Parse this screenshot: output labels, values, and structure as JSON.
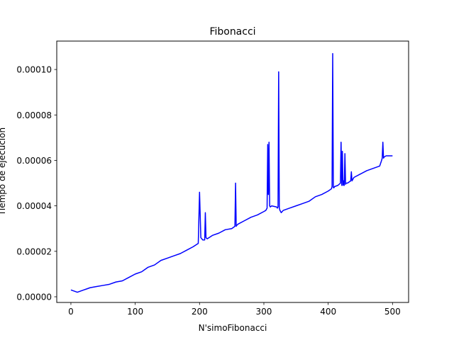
{
  "chart_data": {
    "type": "line",
    "title": "Fibonacci",
    "xlabel": "N'simoFibonacci",
    "ylabel": "Tiempo de ejecución",
    "xlim": [
      -22,
      525
    ],
    "ylim": [
      -2.5e-06,
      0.0001125
    ],
    "x_ticks": [
      0,
      100,
      200,
      300,
      400,
      500
    ],
    "x_tick_labels": [
      "0",
      "100",
      "200",
      "300",
      "400",
      "500"
    ],
    "y_ticks": [
      0,
      2e-05,
      4e-05,
      6e-05,
      8e-05,
      0.0001
    ],
    "y_tick_labels": [
      "0.00000",
      "0.00002",
      "0.00004",
      "0.00006",
      "0.00008",
      "0.00010"
    ],
    "grid": false,
    "series": [
      {
        "color": "#0000ff",
        "x": [
          0,
          5,
          10,
          15,
          20,
          25,
          30,
          40,
          50,
          60,
          70,
          80,
          90,
          100,
          110,
          120,
          130,
          140,
          150,
          160,
          170,
          180,
          190,
          198,
          200,
          202,
          205,
          208,
          209,
          210,
          212,
          220,
          230,
          240,
          250,
          255,
          256,
          257,
          258,
          260,
          270,
          280,
          290,
          300,
          303,
          305,
          306,
          307,
          308,
          309,
          310,
          312,
          320,
          321,
          322,
          323,
          324,
          325,
          327,
          330,
          340,
          350,
          360,
          370,
          380,
          390,
          400,
          405,
          406,
          407,
          408,
          409,
          410,
          415,
          419,
          420,
          421,
          422,
          423,
          424,
          425,
          426,
          427,
          428,
          430,
          435,
          436,
          437,
          440,
          450,
          460,
          470,
          475,
          480,
          483,
          484,
          485,
          486,
          487,
          490,
          500
        ],
        "y": [
          3e-06,
          2.5e-06,
          2e-06,
          2.5e-06,
          3e-06,
          3.5e-06,
          4e-06,
          4.5e-06,
          5e-06,
          5.5e-06,
          6.5e-06,
          7e-06,
          8.5e-06,
          1e-05,
          1.1e-05,
          1.3e-05,
          1.4e-05,
          1.6e-05,
          1.7e-05,
          1.8e-05,
          1.9e-05,
          2.05e-05,
          2.2e-05,
          2.35e-05,
          4.6e-05,
          2.6e-05,
          2.5e-05,
          2.5e-05,
          3.7e-05,
          2.6e-05,
          2.55e-05,
          2.7e-05,
          2.8e-05,
          2.95e-05,
          3e-05,
          3.1e-05,
          5e-05,
          3.1e-05,
          3.15e-05,
          3.2e-05,
          3.35e-05,
          3.5e-05,
          3.6e-05,
          3.75e-05,
          3.8e-05,
          3.9e-05,
          6.7e-05,
          4.5e-05,
          6.8e-05,
          4e-05,
          3.95e-05,
          4e-05,
          3.95e-05,
          3.9e-05,
          3.95e-05,
          9.9e-05,
          3.9e-05,
          3.8e-05,
          3.7e-05,
          3.8e-05,
          3.9e-05,
          4e-05,
          4.1e-05,
          4.2e-05,
          4.4e-05,
          4.5e-05,
          4.65e-05,
          4.75e-05,
          4.85e-05,
          0.000107,
          4.8e-05,
          4.8e-05,
          4.85e-05,
          4.9e-05,
          5e-05,
          6.8e-05,
          4.9e-05,
          6.4e-05,
          4.9e-05,
          5.1e-05,
          4.9e-05,
          6.3e-05,
          4.95e-05,
          5e-05,
          5e-05,
          5.1e-05,
          5.5e-05,
          5.1e-05,
          5.25e-05,
          5.4e-05,
          5.55e-05,
          5.65e-05,
          5.7e-05,
          5.75e-05,
          6e-05,
          6.1e-05,
          6.8e-05,
          6.1e-05,
          6.15e-05,
          6.2e-05,
          6.2e-05
        ]
      }
    ]
  }
}
